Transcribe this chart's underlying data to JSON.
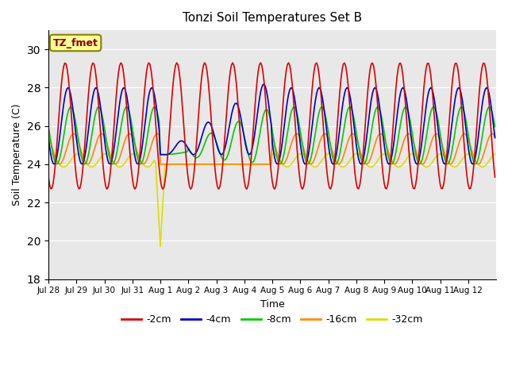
{
  "title": "Tonzi Soil Temperatures Set B",
  "xlabel": "Time",
  "ylabel": "Soil Temperature (C)",
  "ylim": [
    18,
    31
  ],
  "yticks": [
    18,
    20,
    22,
    24,
    26,
    28,
    30
  ],
  "bg_color": "#e8e8e8",
  "annotation_text": "TZ_fmet",
  "annotation_bg": "#ffff99",
  "annotation_edge": "#8B8000",
  "annotation_text_color": "#8B0000",
  "legend_entries": [
    "-2cm",
    "-4cm",
    "-8cm",
    "-16cm",
    "-32cm"
  ],
  "legend_colors": [
    "#dd0000",
    "#0000cc",
    "#00cc00",
    "#ff8800",
    "#dddd00"
  ],
  "xtick_labels": [
    "Jul 28",
    "Jul 29",
    "Jul 30",
    "Jul 31",
    "Aug 1",
    "Aug 2",
    "Aug 3",
    "Aug 4",
    "Aug 5",
    "Aug 6",
    "Aug 7",
    "Aug 8",
    "Aug 9",
    "Aug 10",
    "Aug 11",
    "Aug 12"
  ],
  "n_days": 16,
  "pts_per_day": 24,
  "xlim": [
    0,
    384
  ]
}
